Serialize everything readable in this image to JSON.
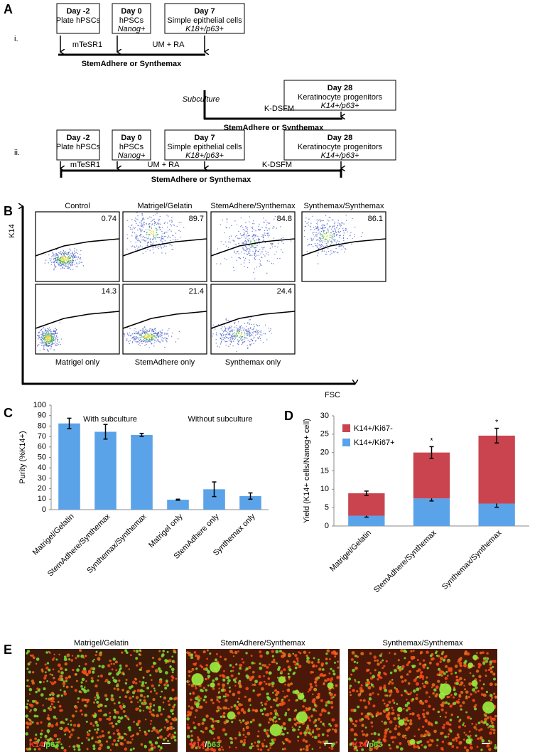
{
  "panel_a": {
    "label": "A",
    "rows": [
      {
        "label": "i.",
        "boxes": [
          {
            "day": "Day -2",
            "lines": [
              "Plate hPSCs"
            ]
          },
          {
            "day": "Day 0",
            "lines": [
              "hPSCs",
              "Nanog+"
            ]
          },
          {
            "day": "Day 7",
            "lines": [
              "Simple epithelial cells",
              "K18+/p63+"
            ]
          },
          {
            "day": "Day 28",
            "lines": [
              "Keratinocyte progenitors",
              "K14+/p63+"
            ]
          }
        ],
        "media": [
          "mTeSR1",
          "UM + RA",
          "K-DSFM"
        ],
        "substrates": [
          "StemAdhere or Synthemax",
          "StemAdhere or Synthemax"
        ],
        "note": "Subculture"
      },
      {
        "label": "ii.",
        "boxes": [
          {
            "day": "Day -2",
            "lines": [
              "Plate hPSCs"
            ]
          },
          {
            "day": "Day 0",
            "lines": [
              "hPSCs",
              "Nanog+"
            ]
          },
          {
            "day": "Day 7",
            "lines": [
              "Simple epithelial cells",
              "K18+/p63+"
            ]
          },
          {
            "day": "Day 28",
            "lines": [
              "Keratinocyte progenitors",
              "K14+/p63+"
            ]
          }
        ],
        "media": [
          "mTeSR1",
          "UM + RA",
          "K-DSFM"
        ],
        "substrates": [
          "StemAdhere or Synthemax"
        ]
      }
    ]
  },
  "panel_b": {
    "label": "B",
    "y_axis": "K14",
    "x_axis": "FSC",
    "top": [
      {
        "title": "Control",
        "value": 0.74
      },
      {
        "title": "Matrigel/Gelatin",
        "value": 89.7
      },
      {
        "title": "StemAdhere/Synthemax",
        "value": 84.8
      },
      {
        "title": "Synthemax/Synthemax",
        "value": 86.1
      }
    ],
    "bottom": [
      {
        "caption": "Matrigel only",
        "value": 14.3
      },
      {
        "caption": "StemAdhere only",
        "value": 21.4
      },
      {
        "caption": "Synthemax only",
        "value": 24.4
      }
    ]
  },
  "chart_data": [
    {
      "type": "bar",
      "label": "C",
      "y_label": "Purity (%K14+)",
      "categories": [
        "Matrigel/Gelatin",
        "StemAdhere/Synthemax",
        "Synthemax/Synthemax",
        "Matrigel only",
        "StemAdhere only",
        "Synthemax only"
      ],
      "values": [
        82.5,
        74.5,
        71.5,
        9.5,
        19.5,
        13
      ],
      "errors": [
        5,
        7,
        1.5,
        0.5,
        7,
        3
      ],
      "color": "#5ba3e8",
      "ylim": [
        0,
        100
      ],
      "yticks": [
        0,
        10,
        20,
        30,
        40,
        50,
        60,
        70,
        80,
        90,
        100
      ],
      "annotations": [
        "With subculture",
        "Without subculture"
      ]
    },
    {
      "type": "stacked_bar",
      "label": "D",
      "y_label": "Yield (K14+ cells/Nanog+ cell)",
      "categories": [
        "Matrigel/Gelatin",
        "StemAdhere/Synthemax",
        "Synthemax/Synthemax"
      ],
      "series": [
        {
          "name": "K14+/Ki67+",
          "color": "#5ba3e8",
          "values": [
            2.8,
            7.5,
            6.1
          ],
          "errors": [
            0.4,
            0.7,
            1.0
          ]
        },
        {
          "name": "K14+/Ki67-",
          "color": "#c9444f",
          "values": [
            6.1,
            12.5,
            18.5
          ],
          "errors": [
            0.6,
            1.6,
            2.0
          ]
        }
      ],
      "markers": [
        null,
        "*",
        "*"
      ],
      "ylim": [
        0,
        30
      ],
      "yticks": [
        0,
        5,
        10,
        15,
        20,
        25,
        30
      ]
    }
  ],
  "panel_e": {
    "label": "E",
    "images": [
      "Matrigel/Gelatin",
      "StemAdhere/Synthemax",
      "Synthemax/Synthemax"
    ],
    "stain": [
      "K14",
      "/",
      "p63"
    ]
  }
}
